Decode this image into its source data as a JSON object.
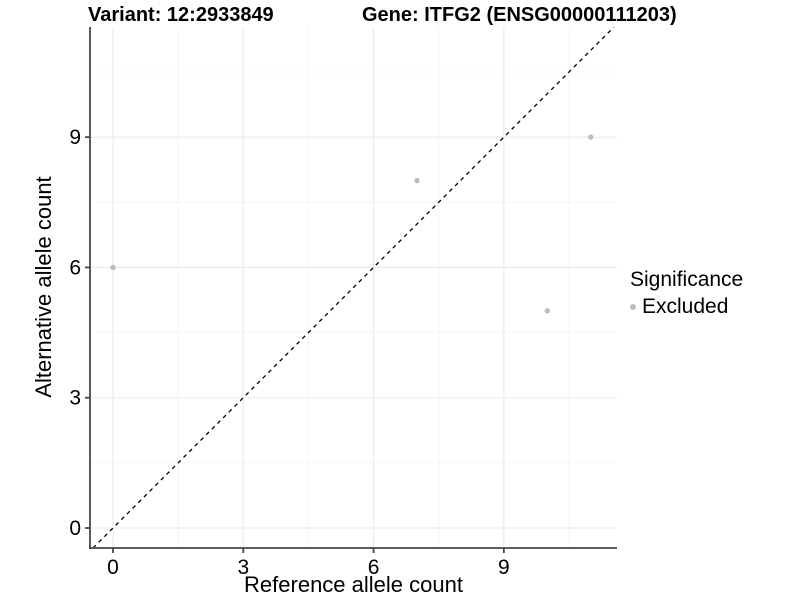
{
  "chart_data": {
    "type": "scatter",
    "title_left": "Variant: 12:2933849",
    "title_right": "Gene: ITFG2 (ENSG00000111203)",
    "xlabel": "Reference allele count",
    "ylabel": "Alternative allele count",
    "x_ticks": [
      0,
      3,
      6,
      9
    ],
    "y_ticks": [
      0,
      3,
      6,
      9
    ],
    "x_minor_ticks": [
      1.5,
      4.5,
      7.5,
      10.5
    ],
    "y_minor_ticks": [
      1.5,
      4.5,
      7.5,
      10.5
    ],
    "xlim": [
      -0.53,
      11.6
    ],
    "ylim": [
      -0.46,
      11.53
    ],
    "grid": true,
    "series": [
      {
        "name": "Excluded",
        "color": "#bdbdbd",
        "points": [
          {
            "x": 0,
            "y": 6
          },
          {
            "x": 7,
            "y": 8
          },
          {
            "x": 10,
            "y": 5
          },
          {
            "x": 11,
            "y": 9
          }
        ]
      }
    ],
    "reference_line": {
      "type": "abline",
      "intercept": 0,
      "slope": 1,
      "style": "dashed",
      "color": "#000000"
    },
    "legend": {
      "title": "Significance",
      "position": "right",
      "entries": [
        {
          "label": "Excluded",
          "color": "#bdbdbd"
        }
      ]
    },
    "colors": {
      "axis_line": "#474747",
      "grid_major": "#e8e8e8",
      "grid_minor": "#f4f4f4",
      "text": "#000000",
      "background": "#ffffff"
    }
  }
}
